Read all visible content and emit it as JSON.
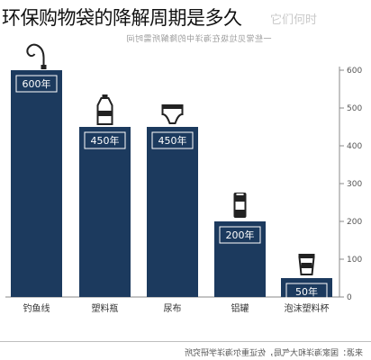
{
  "title": "环保购物袋的降解周期是多久",
  "ghost_title": "它们何时",
  "ghost_subtitle": "一些常见垃圾在海洋中的降解所需时间",
  "source": "来源：国家海洋和大气局，佐证重尔海洋学研究所",
  "colors": {
    "bar": "#1c3a5e",
    "axis": "#888888",
    "icon": "#222222"
  },
  "chart_data": {
    "type": "bar",
    "title": "",
    "xlabel": "",
    "ylabel": "",
    "unit": "年",
    "ylim": [
      0,
      600
    ],
    "yticks": [
      0,
      100,
      200,
      300,
      400,
      500,
      600
    ],
    "tick_labels": [
      "0",
      "100",
      "200",
      "300",
      "400",
      "500",
      "600"
    ],
    "categories": [
      "钓鱼线",
      "塑料瓶",
      "尿布",
      "铝罐",
      "泡沫塑料杯"
    ],
    "values": [
      600,
      450,
      450,
      200,
      50
    ],
    "value_labels": [
      "600年",
      "450年",
      "450年",
      "200年",
      "50年"
    ],
    "icons": [
      "fishing-line-icon",
      "plastic-bottle-icon",
      "diaper-icon",
      "aluminum-can-icon",
      "foam-cup-icon"
    ],
    "axis_side": "right",
    "grid": false
  }
}
